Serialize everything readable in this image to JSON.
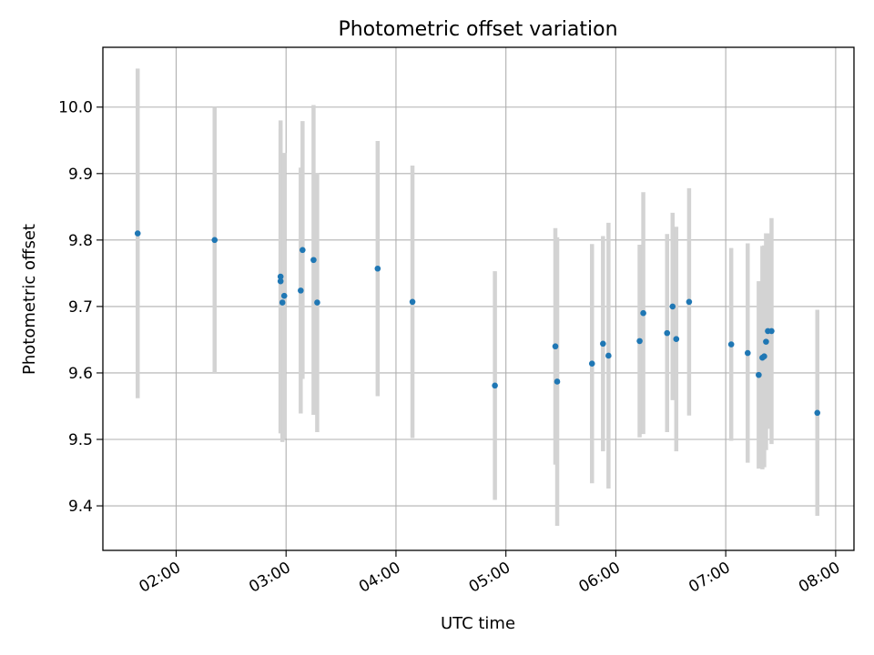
{
  "chart_data": {
    "type": "scatter",
    "title": "Photometric offset variation",
    "xlabel": "UTC time",
    "ylabel": "Photometric offset",
    "x_unit": "UTC time of day",
    "xlim": [
      "01:20",
      "08:10"
    ],
    "ylim": [
      9.333,
      10.09
    ],
    "grid": true,
    "x_ticks": [
      "02:00",
      "03:00",
      "04:00",
      "05:00",
      "06:00",
      "07:00",
      "08:00"
    ],
    "y_ticks": [
      9.4,
      9.5,
      9.6,
      9.7,
      9.8,
      9.9,
      10.0
    ],
    "y_tick_labels": [
      "9.4",
      "9.5",
      "9.6",
      "9.7",
      "9.8",
      "9.9",
      "10.0"
    ],
    "errorbar_color": "#d3d3d3",
    "marker_color": "#1f77b4",
    "points": [
      {
        "time": "01:39",
        "y": 9.81,
        "err": 0.248
      },
      {
        "time": "02:21",
        "y": 9.8,
        "err": 0.2
      },
      {
        "time": "02:57",
        "y": 9.745,
        "err": 0.235
      },
      {
        "time": "02:57",
        "y": 9.738,
        "err": 0.229
      },
      {
        "time": "02:58",
        "y": 9.706,
        "err": 0.21
      },
      {
        "time": "02:59",
        "y": 9.716,
        "err": 0.215
      },
      {
        "time": "03:08",
        "y": 9.724,
        "err": 0.185
      },
      {
        "time": "03:09",
        "y": 9.785,
        "err": 0.194
      },
      {
        "time": "03:15",
        "y": 9.77,
        "err": 0.233
      },
      {
        "time": "03:17",
        "y": 9.706,
        "err": 0.195
      },
      {
        "time": "03:50",
        "y": 9.757,
        "err": 0.192
      },
      {
        "time": "04:09",
        "y": 9.707,
        "err": 0.205
      },
      {
        "time": "04:54",
        "y": 9.581,
        "err": 0.172
      },
      {
        "time": "05:27",
        "y": 9.64,
        "err": 0.178
      },
      {
        "time": "05:28",
        "y": 9.587,
        "err": 0.217
      },
      {
        "time": "05:47",
        "y": 9.614,
        "err": 0.18
      },
      {
        "time": "05:53",
        "y": 9.644,
        "err": 0.162
      },
      {
        "time": "05:56",
        "y": 9.626,
        "err": 0.2
      },
      {
        "time": "06:13",
        "y": 9.648,
        "err": 0.145
      },
      {
        "time": "06:15",
        "y": 9.69,
        "err": 0.182
      },
      {
        "time": "06:28",
        "y": 9.66,
        "err": 0.149
      },
      {
        "time": "06:31",
        "y": 9.7,
        "err": 0.141
      },
      {
        "time": "06:33",
        "y": 9.651,
        "err": 0.169
      },
      {
        "time": "06:40",
        "y": 9.707,
        "err": 0.171
      },
      {
        "time": "07:03",
        "y": 9.643,
        "err": 0.145
      },
      {
        "time": "07:12",
        "y": 9.63,
        "err": 0.165
      },
      {
        "time": "07:18",
        "y": 9.597,
        "err": 0.141
      },
      {
        "time": "07:20",
        "y": 9.623,
        "err": 0.168
      },
      {
        "time": "07:21",
        "y": 9.625,
        "err": 0.167
      },
      {
        "time": "07:22",
        "y": 9.647,
        "err": 0.163
      },
      {
        "time": "07:23",
        "y": 9.663,
        "err": 0.147
      },
      {
        "time": "07:25",
        "y": 9.663,
        "err": 0.17
      },
      {
        "time": "07:50",
        "y": 9.54,
        "err": 0.155
      }
    ]
  }
}
